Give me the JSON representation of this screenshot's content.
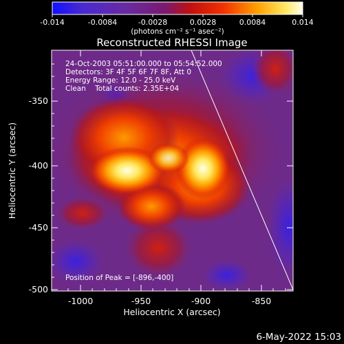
{
  "colorbar": {
    "tick_labels": [
      "-0.014",
      "-0.0084",
      "-0.0028",
      "0.0028",
      "0.0084",
      "0.014"
    ],
    "units_label": "(photons cm⁻² s⁻¹ asec⁻²)",
    "min": -0.014,
    "max": 0.014
  },
  "title": "Reconstructed RHESSI Image",
  "info_lines": [
    "24-Oct-2003 05:51:00.000 to 05:54:52.000",
    "Detectors: 3F 4F 5F 6F 7F 8F, Att 0",
    "Energy Range: 12.0 - 25.0 keV",
    "Clean    Total counts: 2.35E+04"
  ],
  "peak_label": "Position of Peak = [-896,-400]",
  "axes": {
    "xlabel": "Heliocentric X (arcsec)",
    "ylabel": "Heliocentric Y (arcsec)",
    "xlim": [
      -1015,
      -825
    ],
    "ylim": [
      -503,
      -310
    ],
    "xticks": [
      -1000,
      -950,
      -900,
      -850
    ],
    "yticks": [
      -350,
      -400,
      -450,
      -500
    ]
  },
  "timestamp": "6-May-2022 15:03",
  "colors": {
    "background": "#000000",
    "foreground": "#ffffff",
    "low": "#1a10ff",
    "mid_low": "#7a2fa0",
    "mid": "#d42a10",
    "mid_high": "#ffa000",
    "high": "#fffff0"
  }
}
